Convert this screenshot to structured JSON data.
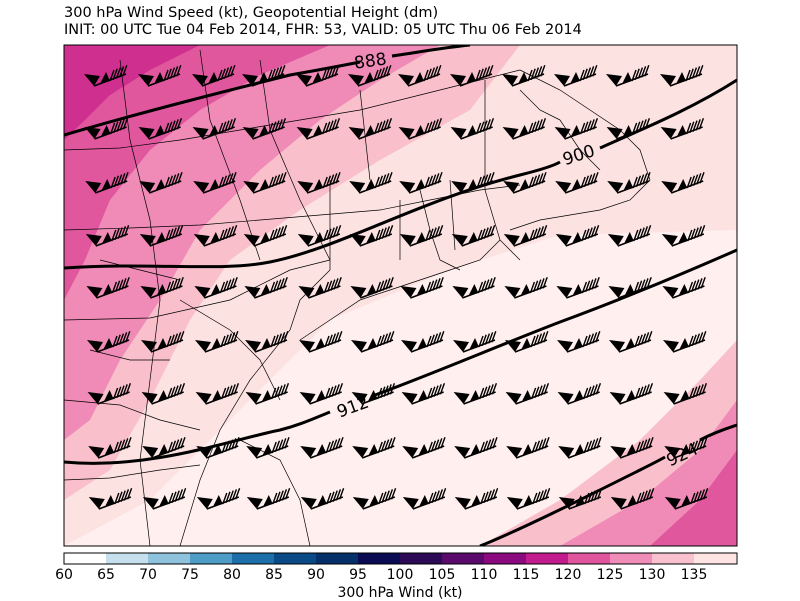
{
  "title": {
    "line1": "300 hPa Wind Speed (kt), Geopotential Height (dm)",
    "line2": "INIT: 00 UTC Tue 04 Feb 2014, FHR: 53, VALID: 05 UTC Thu 06 Feb 2014"
  },
  "contours": [
    {
      "label": "888"
    },
    {
      "label": "900"
    },
    {
      "label": "912"
    },
    {
      "label": "924"
    }
  ],
  "colorbar": {
    "label": "300 hPa Wind (kt)",
    "ticks": [
      "60",
      "65",
      "70",
      "75",
      "80",
      "85",
      "90",
      "95",
      "100",
      "105",
      "110",
      "115",
      "120",
      "125",
      "130",
      "135"
    ],
    "colors": [
      "#ffffff",
      "#c6e0ee",
      "#8fc2dd",
      "#4d9dc6",
      "#1c6fa8",
      "#0a4a86",
      "#06306a",
      "#0a0a55",
      "#2d0a55",
      "#5a0a6b",
      "#8c0a80",
      "#c21b8e",
      "#e0559d",
      "#f08cb8",
      "#f9c0cf",
      "#ffe4e4",
      "#ffffff"
    ]
  },
  "map": {
    "fill_palette": [
      "#cf2f8f",
      "#e0579e",
      "#f08ab6",
      "#f9c0cb",
      "#fde2e2",
      "#fff0ef"
    ]
  }
}
